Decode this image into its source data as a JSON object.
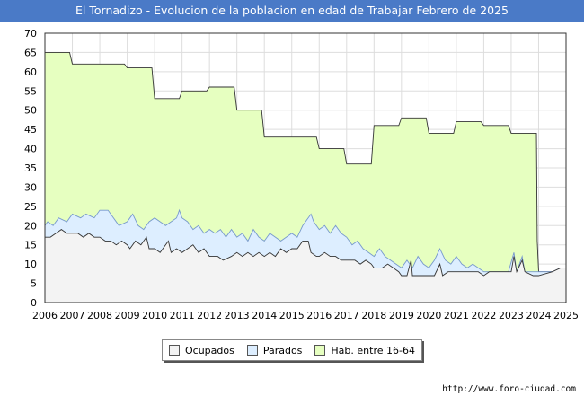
{
  "title": "El Tornadizo - Evolucion de la poblacion en edad de Trabajar Febrero de 2025",
  "source": "http://www.foro-ciudad.com",
  "colors": {
    "ocupados_fill": "#f3f3f3",
    "ocupados_line": "#333333",
    "parados_fill": "#ddeeff",
    "parados_line": "#7799cc",
    "hab_fill": "#e6ffc0",
    "hab_line": "#333333",
    "header": "#4a7ac7"
  },
  "chart_data": {
    "type": "area",
    "title": "El Tornadizo - Evolucion de la poblacion en edad de Trabajar Febrero de 2025",
    "xlabel": "",
    "ylabel": "",
    "xlim": [
      2006,
      2025
    ],
    "ylim": [
      0,
      70
    ],
    "grid": true,
    "legend_position": "bottom",
    "x_ticks": [
      "2006",
      "2007",
      "2008",
      "2009",
      "2010",
      "2011",
      "2012",
      "2013",
      "2014",
      "2015",
      "2016",
      "2017",
      "2018",
      "2019",
      "2020",
      "2021",
      "2022",
      "2023",
      "2024",
      "2025"
    ],
    "y_ticks": [
      0,
      5,
      10,
      15,
      20,
      25,
      30,
      35,
      40,
      45,
      50,
      55,
      60,
      65,
      70
    ],
    "series": [
      {
        "name": "Hab. entre 16-64",
        "points": [
          [
            2006.0,
            65
          ],
          [
            2006.9,
            65
          ],
          [
            2007.0,
            62
          ],
          [
            2008.9,
            62
          ],
          [
            2009.0,
            61
          ],
          [
            2009.9,
            61
          ],
          [
            2010.0,
            53
          ],
          [
            2010.9,
            53
          ],
          [
            2011.0,
            55
          ],
          [
            2011.9,
            55
          ],
          [
            2012.0,
            56
          ],
          [
            2012.9,
            56
          ],
          [
            2013.0,
            50
          ],
          [
            2013.9,
            50
          ],
          [
            2014.0,
            43
          ],
          [
            2015.9,
            43
          ],
          [
            2016.0,
            40
          ],
          [
            2016.9,
            40
          ],
          [
            2017.0,
            36
          ],
          [
            2017.9,
            36
          ],
          [
            2018.0,
            46
          ],
          [
            2018.9,
            46
          ],
          [
            2019.0,
            48
          ],
          [
            2019.9,
            48
          ],
          [
            2020.0,
            44
          ],
          [
            2020.9,
            44
          ],
          [
            2021.0,
            47
          ],
          [
            2021.9,
            47
          ],
          [
            2022.0,
            46
          ],
          [
            2022.9,
            46
          ],
          [
            2023.0,
            44
          ],
          [
            2023.92,
            44
          ],
          [
            2023.95,
            16
          ],
          [
            2024.0,
            8
          ],
          [
            2025.0,
            8
          ]
        ]
      },
      {
        "name": "Parados",
        "points": [
          [
            2006.0,
            20
          ],
          [
            2006.1,
            21
          ],
          [
            2006.3,
            20
          ],
          [
            2006.5,
            22
          ],
          [
            2006.8,
            21
          ],
          [
            2007.0,
            23
          ],
          [
            2007.3,
            22
          ],
          [
            2007.5,
            23
          ],
          [
            2007.8,
            22
          ],
          [
            2008.0,
            24
          ],
          [
            2008.3,
            24
          ],
          [
            2008.5,
            22
          ],
          [
            2008.7,
            20
          ],
          [
            2009.0,
            21
          ],
          [
            2009.2,
            23
          ],
          [
            2009.4,
            20
          ],
          [
            2009.6,
            19
          ],
          [
            2009.8,
            21
          ],
          [
            2010.0,
            22
          ],
          [
            2010.2,
            21
          ],
          [
            2010.4,
            20
          ],
          [
            2010.6,
            21
          ],
          [
            2010.8,
            22
          ],
          [
            2010.9,
            24
          ],
          [
            2011.0,
            22
          ],
          [
            2011.2,
            21
          ],
          [
            2011.4,
            19
          ],
          [
            2011.6,
            20
          ],
          [
            2011.8,
            18
          ],
          [
            2012.0,
            19
          ],
          [
            2012.2,
            18
          ],
          [
            2012.4,
            19
          ],
          [
            2012.6,
            17
          ],
          [
            2012.8,
            19
          ],
          [
            2013.0,
            17
          ],
          [
            2013.2,
            18
          ],
          [
            2013.4,
            16
          ],
          [
            2013.6,
            19
          ],
          [
            2013.8,
            17
          ],
          [
            2014.0,
            16
          ],
          [
            2014.2,
            18
          ],
          [
            2014.4,
            17
          ],
          [
            2014.6,
            16
          ],
          [
            2014.8,
            17
          ],
          [
            2015.0,
            18
          ],
          [
            2015.2,
            17
          ],
          [
            2015.4,
            20
          ],
          [
            2015.6,
            22
          ],
          [
            2015.7,
            23
          ],
          [
            2015.8,
            21
          ],
          [
            2016.0,
            19
          ],
          [
            2016.2,
            20
          ],
          [
            2016.4,
            18
          ],
          [
            2016.6,
            20
          ],
          [
            2016.8,
            18
          ],
          [
            2017.0,
            17
          ],
          [
            2017.2,
            15
          ],
          [
            2017.4,
            16
          ],
          [
            2017.6,
            14
          ],
          [
            2017.8,
            13
          ],
          [
            2018.0,
            12
          ],
          [
            2018.2,
            14
          ],
          [
            2018.4,
            12
          ],
          [
            2018.6,
            11
          ],
          [
            2018.8,
            10
          ],
          [
            2019.0,
            9
          ],
          [
            2019.2,
            11
          ],
          [
            2019.4,
            9
          ],
          [
            2019.6,
            12
          ],
          [
            2019.8,
            10
          ],
          [
            2020.0,
            9
          ],
          [
            2020.2,
            11
          ],
          [
            2020.4,
            14
          ],
          [
            2020.6,
            11
          ],
          [
            2020.8,
            10
          ],
          [
            2021.0,
            12
          ],
          [
            2021.2,
            10
          ],
          [
            2021.4,
            9
          ],
          [
            2021.6,
            10
          ],
          [
            2021.8,
            9
          ],
          [
            2022.0,
            8
          ],
          [
            2022.5,
            8
          ],
          [
            2022.9,
            8
          ],
          [
            2023.1,
            13
          ],
          [
            2023.2,
            8
          ],
          [
            2023.4,
            12
          ],
          [
            2023.5,
            8
          ],
          [
            2023.8,
            8
          ],
          [
            2024.0,
            8
          ],
          [
            2024.5,
            8
          ],
          [
            2024.8,
            9
          ],
          [
            2025.0,
            9
          ]
        ]
      },
      {
        "name": "Ocupados",
        "points": [
          [
            2006.0,
            17
          ],
          [
            2006.2,
            17
          ],
          [
            2006.4,
            18
          ],
          [
            2006.6,
            19
          ],
          [
            2006.8,
            18
          ],
          [
            2007.0,
            18
          ],
          [
            2007.2,
            18
          ],
          [
            2007.4,
            17
          ],
          [
            2007.6,
            18
          ],
          [
            2007.8,
            17
          ],
          [
            2008.0,
            17
          ],
          [
            2008.2,
            16
          ],
          [
            2008.4,
            16
          ],
          [
            2008.6,
            15
          ],
          [
            2008.8,
            16
          ],
          [
            2009.0,
            15
          ],
          [
            2009.1,
            14
          ],
          [
            2009.3,
            16
          ],
          [
            2009.5,
            15
          ],
          [
            2009.7,
            17
          ],
          [
            2009.8,
            14
          ],
          [
            2010.0,
            14
          ],
          [
            2010.2,
            13
          ],
          [
            2010.4,
            15
          ],
          [
            2010.5,
            16
          ],
          [
            2010.6,
            13
          ],
          [
            2010.8,
            14
          ],
          [
            2011.0,
            13
          ],
          [
            2011.2,
            14
          ],
          [
            2011.4,
            15
          ],
          [
            2011.6,
            13
          ],
          [
            2011.8,
            14
          ],
          [
            2012.0,
            12
          ],
          [
            2012.3,
            12
          ],
          [
            2012.5,
            11
          ],
          [
            2012.8,
            12
          ],
          [
            2013.0,
            13
          ],
          [
            2013.2,
            12
          ],
          [
            2013.4,
            13
          ],
          [
            2013.6,
            12
          ],
          [
            2013.8,
            13
          ],
          [
            2014.0,
            12
          ],
          [
            2014.2,
            13
          ],
          [
            2014.4,
            12
          ],
          [
            2014.6,
            14
          ],
          [
            2014.8,
            13
          ],
          [
            2015.0,
            14
          ],
          [
            2015.2,
            14
          ],
          [
            2015.4,
            16
          ],
          [
            2015.6,
            16
          ],
          [
            2015.7,
            13
          ],
          [
            2015.9,
            12
          ],
          [
            2016.0,
            12
          ],
          [
            2016.2,
            13
          ],
          [
            2016.4,
            12
          ],
          [
            2016.6,
            12
          ],
          [
            2016.8,
            11
          ],
          [
            2017.0,
            11
          ],
          [
            2017.3,
            11
          ],
          [
            2017.5,
            10
          ],
          [
            2017.7,
            11
          ],
          [
            2017.9,
            10
          ],
          [
            2018.0,
            9
          ],
          [
            2018.3,
            9
          ],
          [
            2018.5,
            10
          ],
          [
            2018.7,
            9
          ],
          [
            2018.9,
            8
          ],
          [
            2019.0,
            7
          ],
          [
            2019.2,
            7
          ],
          [
            2019.35,
            11
          ],
          [
            2019.4,
            7
          ],
          [
            2019.6,
            7
          ],
          [
            2019.8,
            7
          ],
          [
            2020.0,
            7
          ],
          [
            2020.2,
            7
          ],
          [
            2020.4,
            10
          ],
          [
            2020.5,
            7
          ],
          [
            2020.7,
            8
          ],
          [
            2020.9,
            8
          ],
          [
            2021.0,
            8
          ],
          [
            2021.4,
            8
          ],
          [
            2021.8,
            8
          ],
          [
            2022.0,
            7
          ],
          [
            2022.2,
            8
          ],
          [
            2022.5,
            8
          ],
          [
            2023.0,
            8
          ],
          [
            2023.1,
            12
          ],
          [
            2023.2,
            8
          ],
          [
            2023.4,
            11
          ],
          [
            2023.5,
            8
          ],
          [
            2023.8,
            7
          ],
          [
            2024.0,
            7
          ],
          [
            2024.5,
            8
          ],
          [
            2024.8,
            9
          ],
          [
            2025.0,
            9
          ]
        ]
      }
    ]
  },
  "legend": {
    "items": [
      {
        "label": "Ocupados",
        "color": "#f3f3f3"
      },
      {
        "label": "Parados",
        "color": "#ddeeff"
      },
      {
        "label": "Hab. entre 16-64",
        "color": "#e6ffc0"
      }
    ]
  }
}
